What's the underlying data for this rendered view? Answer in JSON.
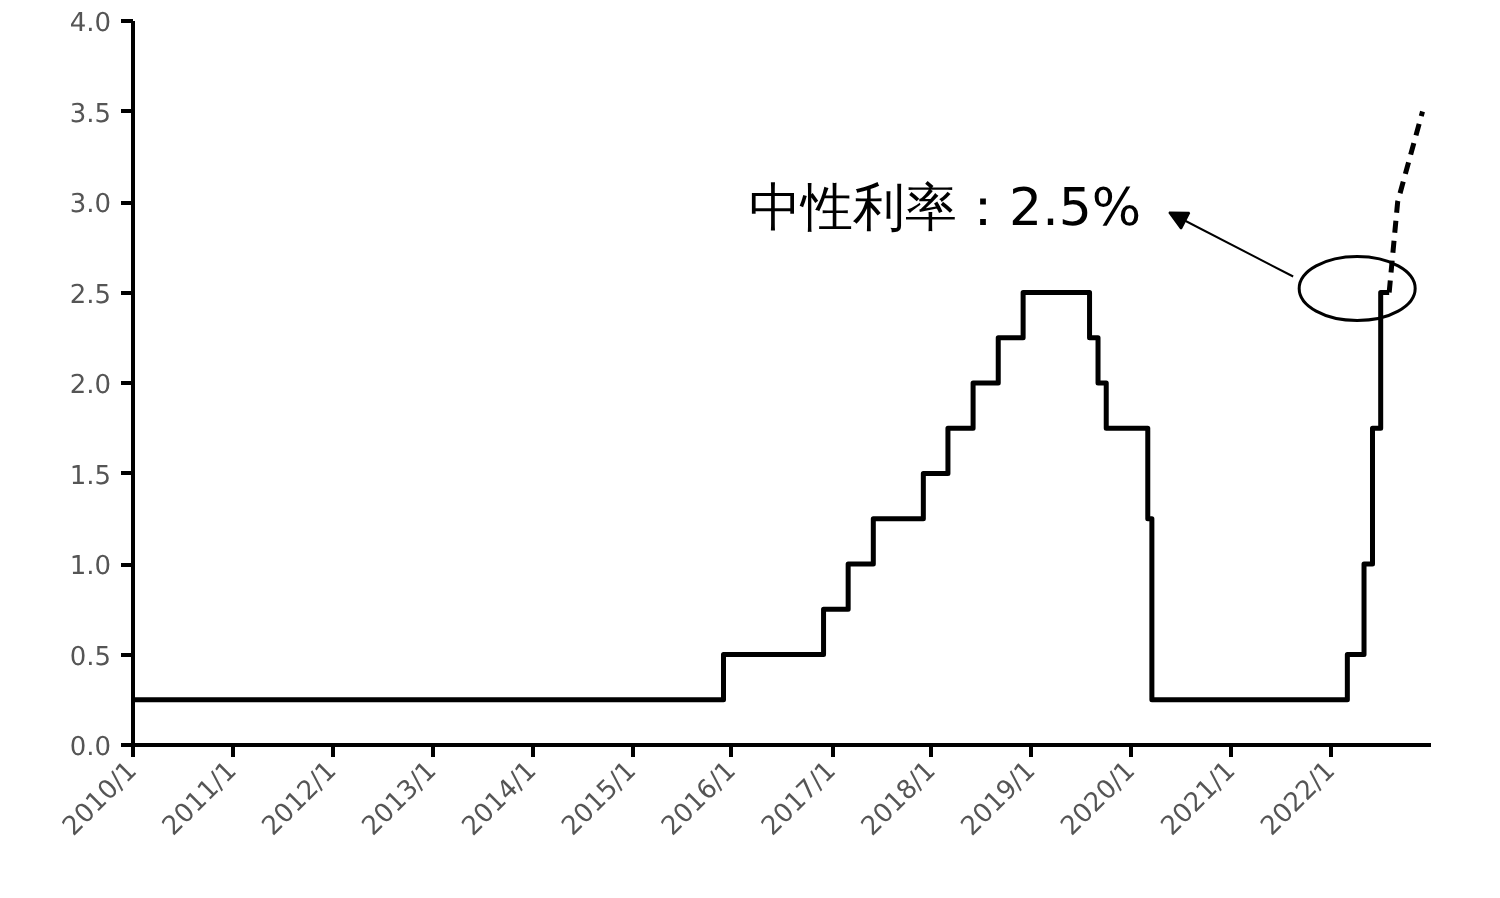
{
  "chart_data": {
    "type": "step",
    "xlim": [
      "2010-01",
      "2023-01"
    ],
    "xticks": [
      {
        "value": "2010-01",
        "label": "2010/1"
      },
      {
        "value": "2011-01",
        "label": "2011/1"
      },
      {
        "value": "2012-01",
        "label": "2012/1"
      },
      {
        "value": "2013-01",
        "label": "2013/1"
      },
      {
        "value": "2014-01",
        "label": "2014/1"
      },
      {
        "value": "2015-01",
        "label": "2015/1"
      },
      {
        "value": "2016-01",
        "label": "2016/1"
      },
      {
        "value": "2017-01",
        "label": "2017/1"
      },
      {
        "value": "2018-01",
        "label": "2018/1"
      },
      {
        "value": "2019-01",
        "label": "2019/1"
      },
      {
        "value": "2020-01",
        "label": "2020/1"
      },
      {
        "value": "2021-01",
        "label": "2021/1"
      },
      {
        "value": "2022-01",
        "label": "2022/1"
      }
    ],
    "ylim": [
      0,
      4
    ],
    "yticks": [
      {
        "value": 0,
        "label": "0.0"
      },
      {
        "value": 0.5,
        "label": "0.5"
      },
      {
        "value": 1,
        "label": "1.0"
      },
      {
        "value": 1.5,
        "label": "1.5"
      },
      {
        "value": 2,
        "label": "2.0"
      },
      {
        "value": 2.5,
        "label": "2.5"
      },
      {
        "value": 3,
        "label": "3.0"
      },
      {
        "value": 3.5,
        "label": "3.5"
      },
      {
        "value": 4,
        "label": "4.0"
      }
    ],
    "grid": false,
    "series": [
      {
        "color": "#000000",
        "line_style": "solid",
        "x": [
          "2010-01",
          "2015-12",
          "2016-12",
          "2017-03",
          "2017-06",
          "2017-12",
          "2018-03",
          "2018-06",
          "2018-09",
          "2018-12",
          "2019-08",
          "2019-09",
          "2019-10",
          "2020-03",
          "2020-03-16",
          "2022-03",
          "2022-05",
          "2022-06",
          "2022-07",
          "2022-08"
        ],
        "values": [
          0.25,
          0.5,
          0.75,
          1.0,
          1.25,
          1.5,
          1.75,
          2.0,
          2.25,
          2.5,
          2.25,
          2.0,
          1.75,
          1.25,
          0.25,
          0.5,
          1.0,
          1.75,
          2.5,
          2.5
        ]
      },
      {
        "type": "line",
        "color": "#000000",
        "line_style": "dashed",
        "x": [
          "2022-08",
          "2022-09",
          "2022-12"
        ],
        "values": [
          2.5,
          3.0,
          3.5
        ]
      }
    ],
    "annotations": [
      "中性利率：2.5%"
    ]
  }
}
